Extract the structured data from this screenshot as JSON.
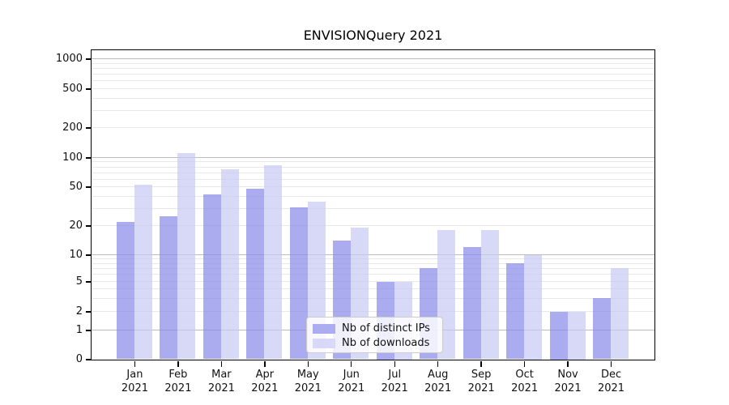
{
  "chart_data": {
    "type": "bar",
    "title": "ENVISIONQuery 2021",
    "categories": [
      "Jan 2021",
      "Feb 2021",
      "Mar 2021",
      "Apr 2021",
      "May 2021",
      "Jun 2021",
      "Jul 2021",
      "Aug 2021",
      "Sep 2021",
      "Oct 2021",
      "Nov 2021",
      "Dec 2021"
    ],
    "series": [
      {
        "name": "Nb of distinct IPs",
        "color": "#8888ea",
        "opacity": 0.7,
        "values": [
          22,
          25,
          42,
          48,
          31,
          14,
          5,
          7,
          12,
          8,
          2,
          3
        ]
      },
      {
        "name": "Nb of downloads",
        "color": "#c8c8f4",
        "opacity": 0.7,
        "values": [
          52,
          110,
          76,
          83,
          35,
          19,
          5,
          18,
          18,
          10,
          2,
          7
        ]
      }
    ],
    "yticks": [
      0,
      1,
      2,
      5,
      10,
      20,
      50,
      100,
      200,
      500,
      1000
    ],
    "ylim": [
      0,
      1250
    ],
    "yscale": "symlog",
    "xlabel": "",
    "ylabel": "",
    "grid": "horizontal, major and minor",
    "legend_position": "lower center",
    "grid_major_color": "#bbbbbb",
    "grid_minor_color": "#e8e8e8"
  }
}
